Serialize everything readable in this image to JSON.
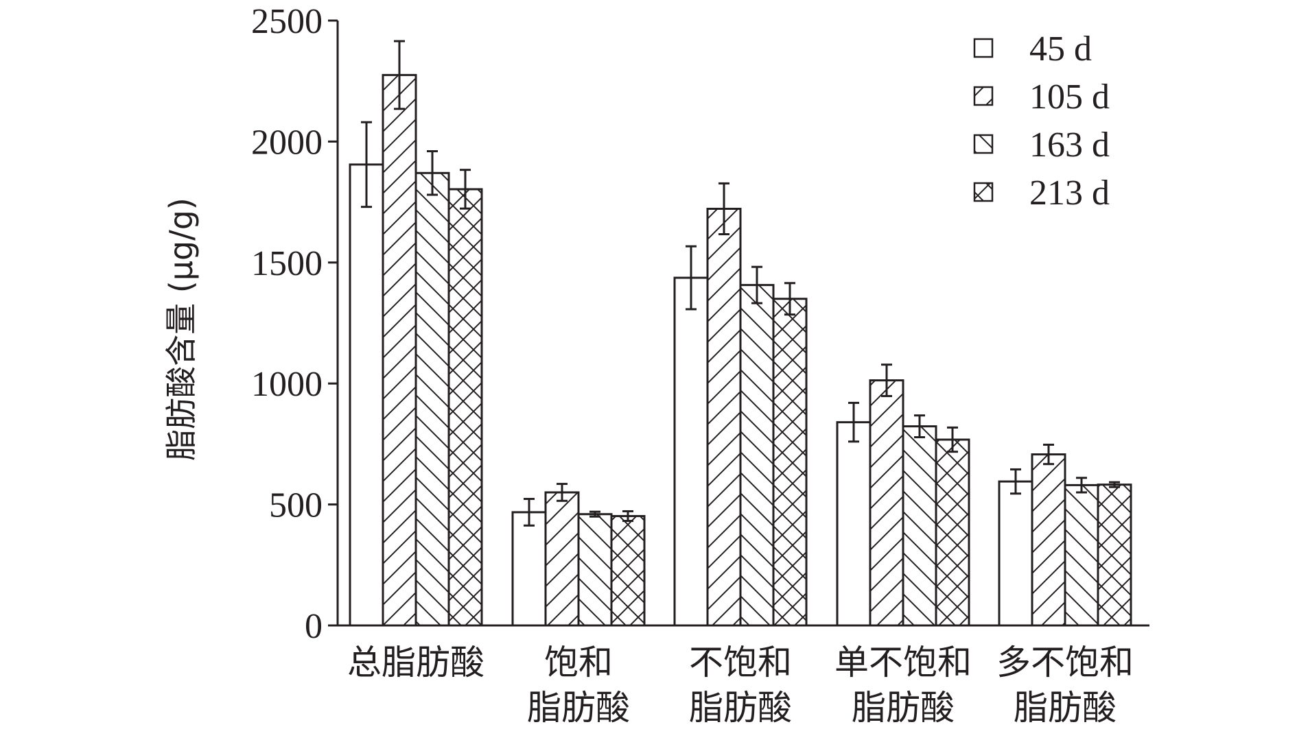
{
  "chart_data": {
    "type": "bar",
    "title": "",
    "xlabel": "",
    "ylabel": "脂肪酸含量 (μg/g)",
    "ylim": [
      0,
      2500
    ],
    "yticks": [
      "0",
      "500",
      "1000",
      "1500",
      "2000",
      "2500"
    ],
    "grid": false,
    "legend_position": "top-right",
    "categories": [
      [
        "总脂肪酸"
      ],
      [
        "饱和",
        "脂肪酸"
      ],
      [
        "不饱和",
        "脂肪酸"
      ],
      [
        "单不饱和",
        "脂肪酸"
      ],
      [
        "多不饱和",
        "脂肪酸"
      ]
    ],
    "series": [
      {
        "name": "45 d",
        "pattern": "none",
        "values": [
          1905,
          468,
          1437,
          840,
          595
        ],
        "errors": [
          175,
          55,
          130,
          80,
          50
        ]
      },
      {
        "name": "105 d",
        "pattern": "forward",
        "values": [
          2275,
          550,
          1722,
          1013,
          707
        ],
        "errors": [
          140,
          35,
          105,
          65,
          40
        ]
      },
      {
        "name": "163 d",
        "pattern": "backward",
        "values": [
          1870,
          460,
          1407,
          823,
          580
        ],
        "errors": [
          90,
          10,
          75,
          45,
          30
        ]
      },
      {
        "name": "213 d",
        "pattern": "cross",
        "values": [
          1803,
          452,
          1350,
          768,
          582
        ],
        "errors": [
          80,
          20,
          65,
          50,
          10
        ]
      }
    ],
    "colors": {
      "stroke": "#231f20",
      "fill": "#ffffff"
    }
  }
}
